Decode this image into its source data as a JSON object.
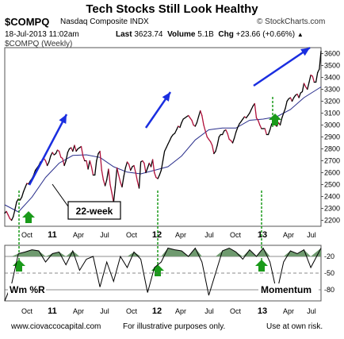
{
  "header": {
    "title": "Tech Stocks Still Look Healthy",
    "symbol": "$COMPQ",
    "exchange": "Nasdaq Composite INDX",
    "source": "© StockCharts.com",
    "date": "18-Jul-2013 11:02am",
    "last_label": "Last",
    "last_value": "3623.74",
    "volume_label": "Volume",
    "volume_value": "5.1B",
    "chg_label": "Chg",
    "chg_value": "+23.66 (+0.66%)",
    "chg_arrow": "▲",
    "subtitle": "$COMPQ (Weekly)"
  },
  "footer": {
    "left": "www.ciovaccocapital.com",
    "mid": "For illustrative purposes only.",
    "right": "Use at own risk."
  },
  "annotations": {
    "ma_label": "22-week",
    "indicator_label": "Wm %R",
    "momentum_label": "Momentum"
  },
  "colors": {
    "price_up": "#000000",
    "price_down": "#b0103a",
    "ma": "#2a2f8c",
    "trend_arrow": "#1a2ee0",
    "signal_arrow": "#1a9a1a",
    "signal_line": "#1a9a1a",
    "wr_fill": "#6f9a6f"
  },
  "chart_data": [
    {
      "type": "line",
      "name": "price",
      "ylim": [
        2150,
        3650
      ],
      "yticks": [
        "2200",
        "2300",
        "2400",
        "2500",
        "2600",
        "2700",
        "2800",
        "2900",
        "3000",
        "3100",
        "3200",
        "3300",
        "3400",
        "3500",
        "3600"
      ],
      "xticks": [
        "Oct",
        "11",
        "Apr",
        "Jul",
        "Oct",
        "12",
        "Apr",
        "Jul",
        "Oct",
        "13",
        "Apr",
        "Jul"
      ],
      "bold_xticks": [
        "11",
        "12",
        "13"
      ],
      "x": [
        0,
        1,
        2,
        3,
        4,
        5,
        6,
        7,
        8,
        9,
        10,
        11,
        12,
        13,
        14,
        15,
        16,
        17,
        18,
        19,
        20,
        21,
        22,
        23,
        24,
        25,
        26,
        27,
        28,
        29,
        30,
        31,
        32,
        33,
        34,
        35,
        36,
        37,
        38,
        39,
        40,
        41,
        42,
        43,
        44,
        45,
        46,
        47,
        48,
        49,
        50,
        51,
        52,
        53,
        54,
        55,
        56,
        57,
        58,
        59,
        60,
        61,
        62,
        63,
        64,
        65,
        66,
        67,
        68,
        69,
        70,
        71,
        72,
        73,
        74,
        75,
        76,
        77,
        78,
        79,
        80,
        81,
        82,
        83,
        84,
        85,
        86,
        87,
        88,
        89,
        90,
        91,
        92,
        93,
        94,
        95,
        96,
        97,
        98,
        99,
        100,
        101,
        102,
        103,
        104,
        105,
        106,
        107,
        108,
        109,
        110,
        111,
        112,
        113,
        114,
        115,
        116,
        117,
        118,
        119,
        120,
        121,
        122,
        123,
        124,
        125,
        126,
        127,
        128,
        129,
        130,
        131,
        132,
        133,
        134,
        135,
        136,
        137,
        138,
        139,
        140,
        141,
        142,
        143,
        144,
        145,
        146,
        147,
        148,
        149,
        150,
        151,
        152,
        153,
        154,
        155,
        156,
        157,
        158,
        159,
        160,
        161,
        162,
        163,
        164,
        165,
        166,
        167,
        168,
        169,
        170,
        171,
        172,
        173,
        174,
        175,
        176,
        177,
        178,
        179,
        180,
        181,
        182,
        183,
        184,
        185,
        186
      ],
      "values": [
        2260,
        2275,
        2245,
        2215,
        2200,
        2230,
        2290,
        2355,
        2380,
        2370,
        2395,
        2440,
        2475,
        2510,
        2505,
        2530,
        2550,
        2580,
        2620,
        2640,
        2660,
        2690,
        2700,
        2720,
        2700,
        2660,
        2690,
        2740,
        2770,
        2750,
        2760,
        2790,
        2780,
        2730,
        2720,
        2660,
        2700,
        2770,
        2800,
        2810,
        2780,
        2830,
        2780,
        2800,
        2810,
        2820,
        2740,
        2700,
        2700,
        2630,
        2700,
        2650,
        2580,
        2580,
        2700,
        2760,
        2780,
        2620,
        2540,
        2490,
        2540,
        2630,
        2500,
        2430,
        2350,
        2480,
        2640,
        2580,
        2520,
        2480,
        2570,
        2640,
        2690,
        2670,
        2620,
        2650,
        2660,
        2600,
        2530,
        2470,
        2690,
        2700,
        2680,
        2600,
        2640,
        2680,
        2650,
        2710,
        2600,
        2560,
        2550,
        2580,
        2620,
        2700,
        2780,
        2810,
        2840,
        2870,
        2900,
        2920,
        2930,
        2960,
        2990,
        2980,
        3020,
        3050,
        3060,
        3070,
        3080,
        3060,
        3040,
        3000,
        2990,
        3020,
        3070,
        3120,
        3080,
        3000,
        2950,
        2900,
        2880,
        2860,
        2830,
        2760,
        2780,
        2830,
        2900,
        2920,
        2920,
        2950,
        2960,
        2930,
        2880,
        2870,
        2850,
        2890,
        2940,
        2980,
        3010,
        3030,
        3050,
        3070,
        3060,
        3080,
        3100,
        3130,
        3160,
        3180,
        3060,
        3040,
        3000,
        2970,
        2970,
        2970,
        2920,
        2920,
        2960,
        3010,
        3020,
        3000,
        2990,
        3020,
        3000,
        3060,
        3100,
        3140,
        3200,
        3220,
        3230,
        3200,
        3230,
        3250,
        3260,
        3230,
        3270,
        3280,
        3350,
        3320,
        3300,
        3360,
        3420,
        3410,
        3360,
        3360,
        3440,
        3470,
        3620
      ],
      "ma_x": [
        0,
        8,
        16,
        24,
        32,
        40,
        48,
        56,
        64,
        72,
        80,
        88,
        96,
        104,
        112,
        120,
        128,
        136,
        144,
        152,
        160,
        168,
        176,
        186
      ],
      "ma_values": [
        2330,
        2270,
        2395,
        2560,
        2680,
        2745,
        2750,
        2728,
        2650,
        2605,
        2590,
        2620,
        2650,
        2740,
        2875,
        2960,
        2975,
        2975,
        3040,
        3050,
        3070,
        3130,
        3230,
        3320
      ]
    },
    {
      "type": "line",
      "name": "williams-r",
      "ylim": [
        -100,
        0
      ],
      "yticks": [
        "-20",
        "-50",
        "-80"
      ],
      "xticks": [
        "Oct",
        "11",
        "Apr",
        "Jul",
        "Oct",
        "12",
        "Apr",
        "Jul",
        "Oct",
        "13",
        "Apr",
        "Jul"
      ],
      "bold_xticks": [
        "11",
        "12",
        "13"
      ],
      "x": [
        0,
        4,
        8,
        12,
        16,
        20,
        24,
        28,
        32,
        36,
        40,
        44,
        48,
        52,
        56,
        60,
        64,
        68,
        72,
        76,
        80,
        84,
        88,
        92,
        96,
        100,
        104,
        108,
        112,
        116,
        120,
        124,
        128,
        132,
        136,
        140,
        144,
        148,
        152,
        156,
        160,
        164,
        168,
        172,
        176,
        180,
        186
      ],
      "values": [
        -100,
        -70,
        -15,
        -12,
        -8,
        -10,
        -30,
        -15,
        -12,
        -35,
        -10,
        -45,
        -25,
        -20,
        -75,
        -30,
        -65,
        -20,
        -40,
        -12,
        -25,
        -85,
        -40,
        -30,
        -5,
        -8,
        -10,
        -20,
        -5,
        -30,
        -90,
        -50,
        -10,
        -5,
        -12,
        -25,
        -8,
        -20,
        -5,
        -30,
        -85,
        -30,
        -10,
        -15,
        -8,
        -40,
        -5
      ]
    }
  ]
}
